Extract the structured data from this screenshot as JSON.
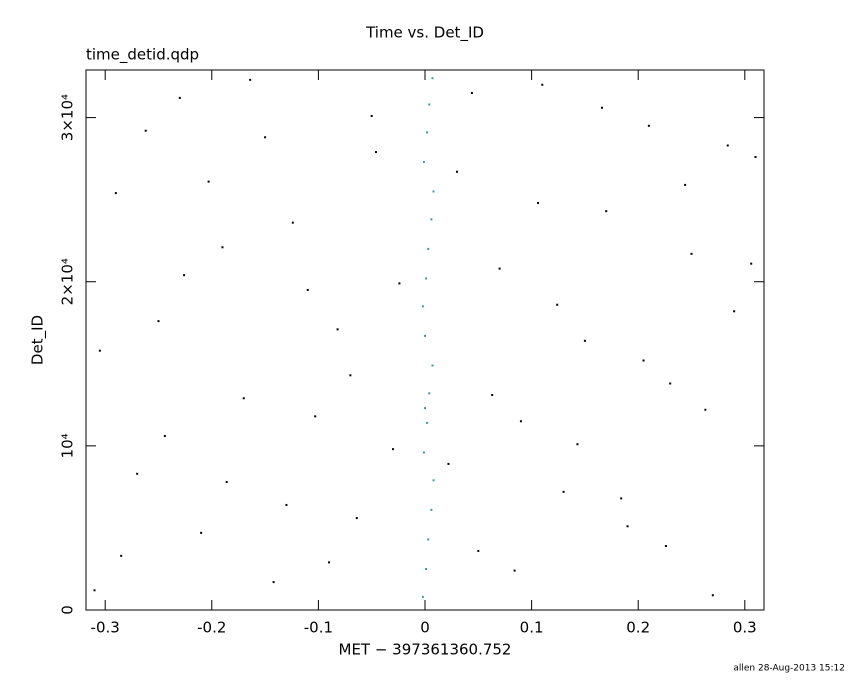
{
  "chart_data": {
    "type": "scatter",
    "title": "Time vs. Det_ID",
    "subtitle": "time_detid.qdp",
    "x_label": "MET − 397361360.752",
    "y_label": "Det_ID",
    "footer": "allen 28-Aug-2013 15:12",
    "xlim": [
      -0.318,
      0.318
    ],
    "ylim": [
      0,
      32900
    ],
    "xticks": [
      -0.3,
      -0.2,
      -0.1,
      0,
      0.1,
      0.2,
      0.3
    ],
    "yticks": [
      0,
      {
        "value": 10000,
        "label": "10⁴"
      },
      {
        "value": 20000,
        "label": "2×10⁴"
      },
      {
        "value": 30000,
        "label": "3×10⁴"
      }
    ],
    "series": [
      {
        "color": "#000000",
        "x": [
          -0.31,
          -0.29,
          -0.27,
          -0.25,
          -0.23,
          -0.21,
          -0.19,
          -0.17,
          -0.15,
          -0.13,
          -0.11,
          -0.09,
          -0.07,
          -0.05,
          -0.03,
          0.03,
          0.05,
          0.07,
          0.09,
          0.11,
          0.13,
          0.15,
          0.17,
          0.19,
          0.21,
          0.23,
          0.25,
          0.27,
          0.29,
          0.31,
          -0.305,
          -0.285,
          -0.262,
          -0.244,
          -0.226,
          -0.203,
          -0.186,
          -0.164,
          -0.142,
          -0.124,
          -0.103,
          -0.082,
          -0.064,
          -0.046,
          -0.024,
          0.022,
          0.044,
          0.063,
          0.084,
          0.106,
          0.124,
          0.143,
          0.166,
          0.184,
          0.205,
          0.226,
          0.244,
          0.263,
          0.284,
          0.306
        ],
        "values": [
          1200,
          25400,
          8300,
          17600,
          31200,
          4700,
          22100,
          12900,
          28800,
          6400,
          19500,
          2900,
          14300,
          30100,
          9800,
          26700,
          3600,
          20800,
          11500,
          32000,
          7200,
          16400,
          24300,
          5100,
          29500,
          13800,
          21700,
          900,
          18200,
          27600,
          15800,
          3300,
          29200,
          10600,
          20400,
          26100,
          7800,
          32300,
          1700,
          23600,
          11800,
          17100,
          5600,
          27900,
          19900,
          8900,
          31500,
          13100,
          2400,
          24800,
          18600,
          10100,
          30600,
          6800,
          15200,
          3900,
          25900,
          12200,
          28300,
          21100
        ]
      },
      {
        "color": "#3a9a9a",
        "x": [
          -0.002,
          0.001,
          0.003,
          0.006,
          0.008,
          -0.001,
          0.002,
          0.004,
          0.007,
          0,
          -0.002,
          0.001,
          0.003,
          0.006,
          0.008,
          -0.001,
          0.002,
          0.004,
          0.007,
          0
        ],
        "values": [
          800,
          2500,
          4300,
          6100,
          7900,
          9600,
          11400,
          13200,
          14900,
          16700,
          18500,
          20200,
          22000,
          23800,
          25500,
          27300,
          29100,
          30800,
          32400,
          12300
        ]
      }
    ]
  }
}
